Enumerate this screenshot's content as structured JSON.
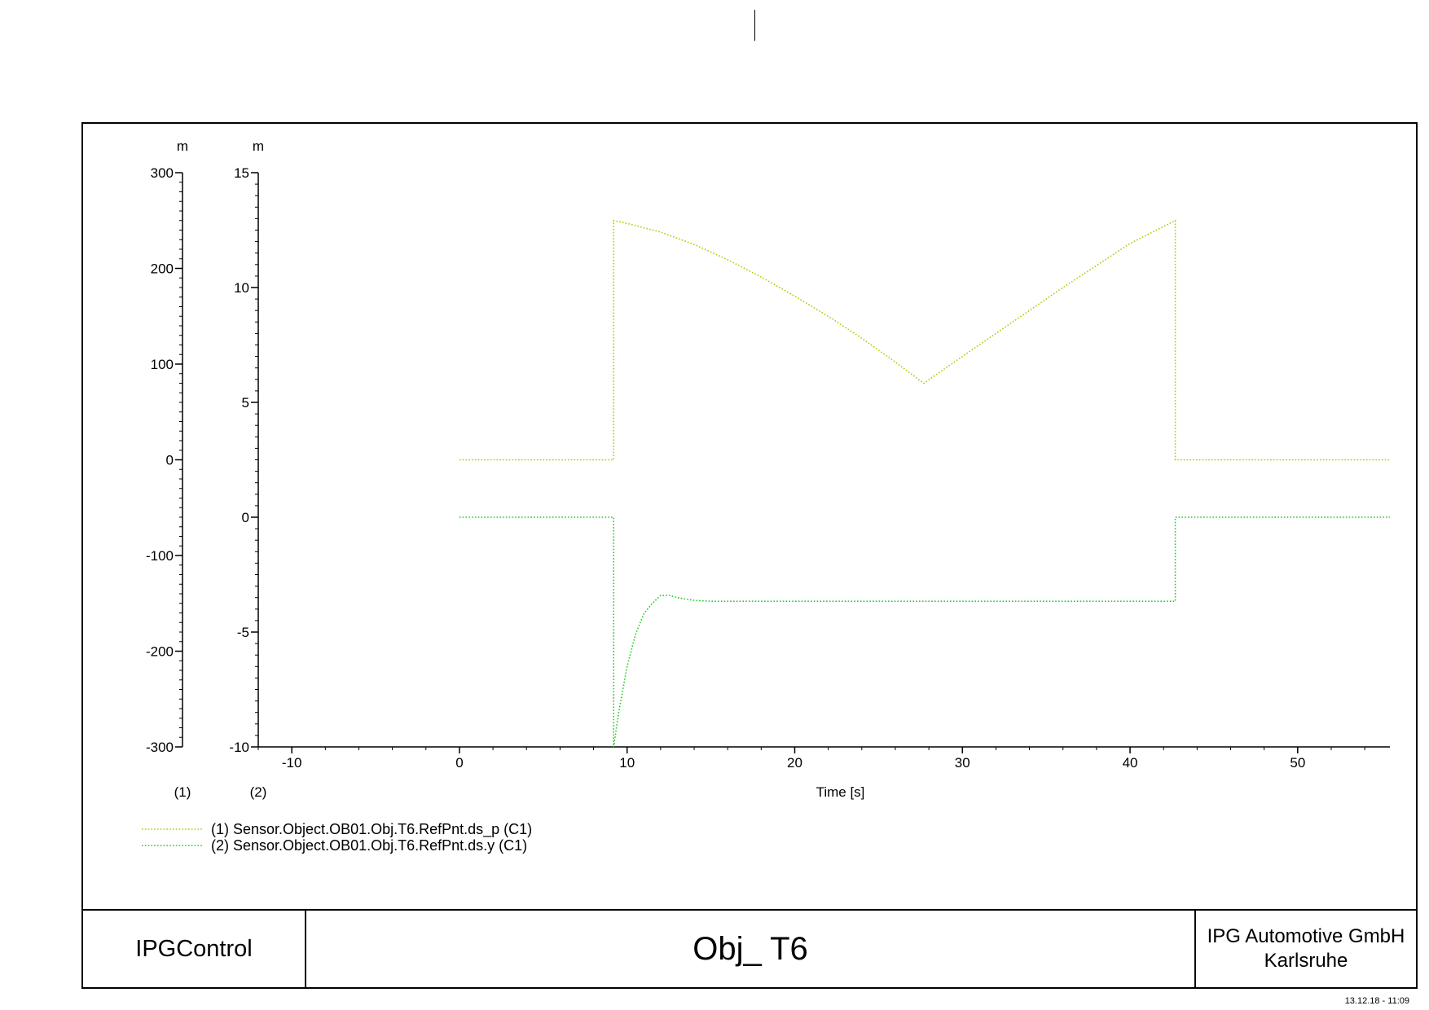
{
  "chart_data": {
    "type": "line",
    "xlabel": "Time [s]",
    "xlim": [
      -12,
      55.5
    ],
    "x_ticks": [
      -10,
      0,
      10,
      20,
      30,
      40,
      50
    ],
    "axes": [
      {
        "id": "1",
        "label": "(1)",
        "unit": "m",
        "ylim": [
          -300,
          300
        ],
        "ticks": [
          300,
          200,
          100,
          0,
          -100,
          -200,
          -300
        ]
      },
      {
        "id": "2",
        "label": "(2)",
        "unit": "m",
        "ylim": [
          -10,
          15
        ],
        "ticks": [
          15,
          10,
          5,
          0,
          -5,
          -10
        ]
      }
    ],
    "series": [
      {
        "name": "(1) Sensor.Object.OB01.Obj.T6.RefPnt.ds_p (C1)",
        "axis": "1",
        "color": "#b8c800",
        "style": "dotted",
        "points": [
          [
            0,
            0
          ],
          [
            9.2,
            0
          ],
          [
            9.2,
            250
          ],
          [
            10,
            247
          ],
          [
            12,
            238
          ],
          [
            14,
            225
          ],
          [
            16,
            209
          ],
          [
            18,
            191
          ],
          [
            20,
            171
          ],
          [
            22,
            150
          ],
          [
            24,
            127
          ],
          [
            26,
            102
          ],
          [
            27.7,
            80
          ],
          [
            30,
            108
          ],
          [
            32,
            132
          ],
          [
            34,
            156
          ],
          [
            36,
            180
          ],
          [
            38,
            203
          ],
          [
            40,
            226
          ],
          [
            42.7,
            250
          ],
          [
            42.7,
            0
          ],
          [
            55.5,
            0
          ]
        ]
      },
      {
        "name": "(2) Sensor.Object.OB01.Obj.T6.RefPnt.ds.y (C1)",
        "axis": "2",
        "color": "#22cc22",
        "style": "dotted",
        "points": [
          [
            0,
            0
          ],
          [
            9.2,
            0
          ],
          [
            9.2,
            -10
          ],
          [
            9.5,
            -8.5
          ],
          [
            10,
            -6.5
          ],
          [
            10.5,
            -5.1
          ],
          [
            11,
            -4.2
          ],
          [
            11.5,
            -3.75
          ],
          [
            12,
            -3.4
          ],
          [
            12.5,
            -3.4
          ],
          [
            13,
            -3.5
          ],
          [
            14,
            -3.62
          ],
          [
            15,
            -3.66
          ],
          [
            20,
            -3.66
          ],
          [
            30,
            -3.66
          ],
          [
            42.7,
            -3.66
          ],
          [
            42.7,
            0
          ],
          [
            55.5,
            0
          ]
        ]
      }
    ]
  },
  "footer": {
    "app": "IPGControl",
    "title": "Obj_ T6",
    "company_line1": "IPG Automotive GmbH",
    "company_line2": "Karlsruhe"
  },
  "timestamp": "13.12.18 - 11:09"
}
